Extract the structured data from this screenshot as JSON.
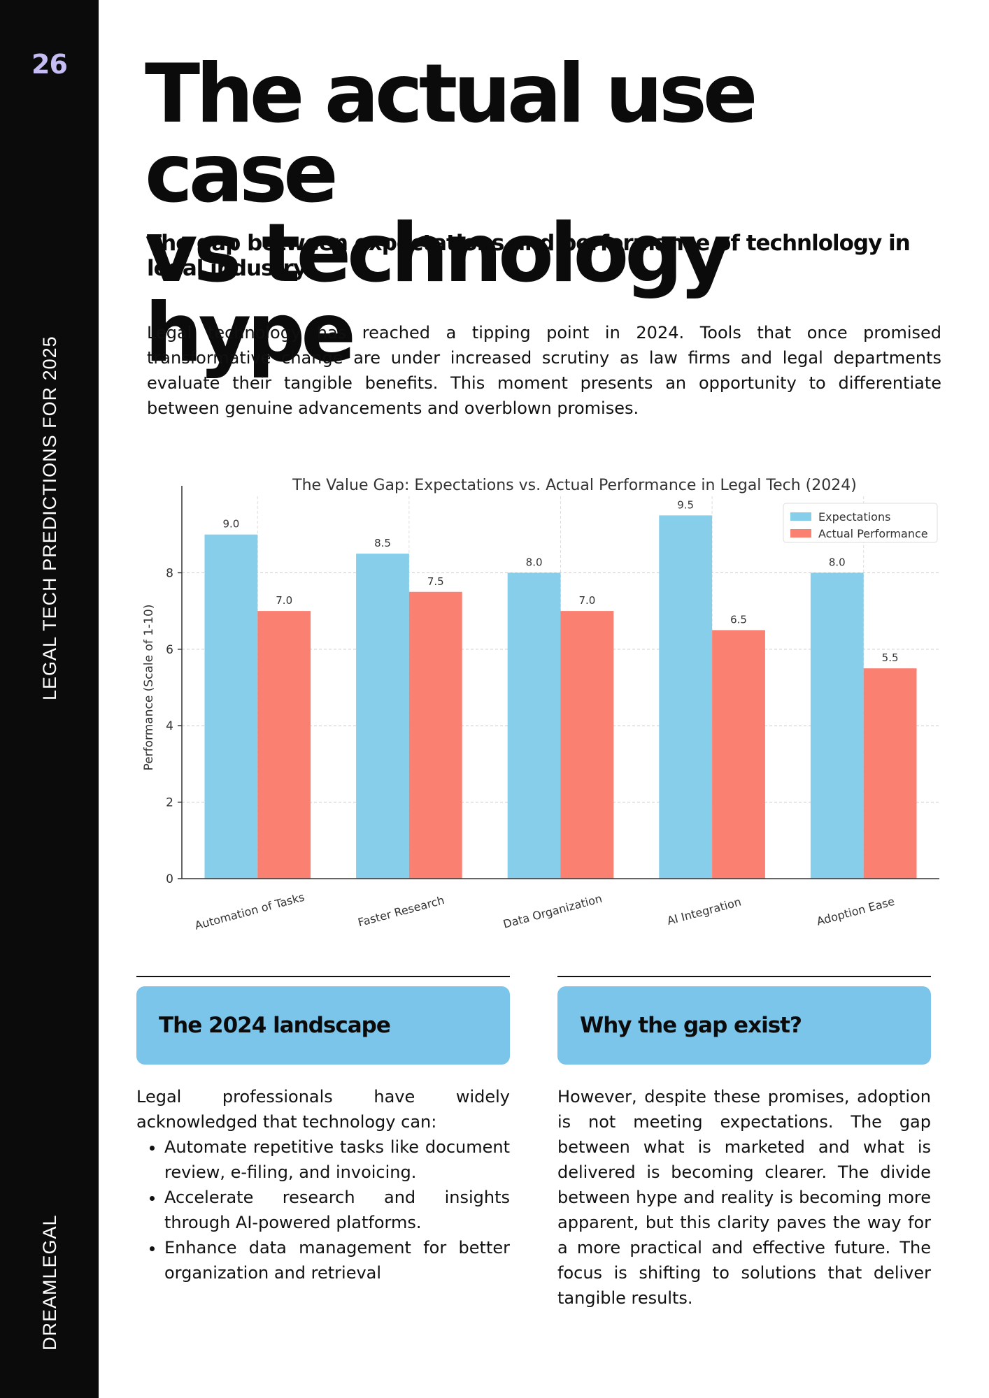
{
  "sidebar": {
    "page_number": "26",
    "section_title": "LEGAL TECH PREDICTIONS FOR 2025",
    "brand": "DREAMLEGAL"
  },
  "header": {
    "title_line1": "The actual use case",
    "title_line2": "vs technology hype",
    "subtitle": "The gap between expectations and performance of technlology in legal industry"
  },
  "intro": "Legal technology has reached a tipping point in 2024. Tools that once promised transformative change are under increased scrutiny as law firms and legal departments evaluate their tangible benefits. This moment presents an opportunity to differentiate between genuine advancements and overblown promises.",
  "chart_data": {
    "type": "bar",
    "title": "The Value Gap: Expectations vs. Actual Performance in Legal Tech (2024)",
    "xlabel": "",
    "ylabel": "Performance (Scale of 1-10)",
    "categories": [
      "Automation of Tasks",
      "Faster Research",
      "Data Organization",
      "AI Integration",
      "Adoption Ease"
    ],
    "series": [
      {
        "name": "Expectations",
        "values": [
          9.0,
          8.5,
          8.0,
          9.5,
          8.0
        ],
        "color": "#87ceeb"
      },
      {
        "name": "Actual Performance",
        "values": [
          7.0,
          7.5,
          7.0,
          6.5,
          5.5
        ],
        "color": "#fa8072"
      }
    ],
    "ylim": [
      0,
      10
    ],
    "yticks": [
      0,
      2,
      4,
      6,
      8
    ],
    "grid": true,
    "legend": "top-right",
    "data_labels": true
  },
  "landscape": {
    "heading": "The 2024 landscape",
    "intro_line1": "Legal professionals have widely",
    "intro_line2": "acknowledged that technology can:",
    "bullets": [
      "Automate repetitive tasks like document review, e-filing, and invoicing.",
      "Accelerate research and insights through AI-powered platforms.",
      "Enhance data management for better organization and retrieval"
    ]
  },
  "gap": {
    "heading": "Why the gap exist?",
    "body": "However, despite these promises, adoption is not meeting expectations. The gap between what is marketed and what is delivered is becoming clearer. The divide between hype and reality is becoming more apparent, but this clarity paves the way for a more practical and effective future. The focus is shifting to solutions that deliver tangible results."
  }
}
